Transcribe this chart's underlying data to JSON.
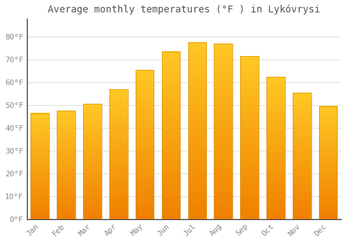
{
  "title": "Average monthly temperatures (°F ) in Lykóvrysi",
  "months": [
    "Jan",
    "Feb",
    "Mar",
    "Apr",
    "May",
    "Jun",
    "Jul",
    "Aug",
    "Sep",
    "Oct",
    "Nov",
    "Dec"
  ],
  "values": [
    46.5,
    47.5,
    50.5,
    57.0,
    65.5,
    73.5,
    77.5,
    77.0,
    71.5,
    62.5,
    55.5,
    49.5
  ],
  "bar_color_top": "#FFC825",
  "bar_color_bottom": "#F08000",
  "background_color": "#FFFFFF",
  "grid_color": "#E0E0E0",
  "ylim": [
    0,
    88
  ],
  "yticks": [
    0,
    10,
    20,
    30,
    40,
    50,
    60,
    70,
    80
  ],
  "ytick_labels": [
    "0°F",
    "10°F",
    "20°F",
    "30°F",
    "40°F",
    "50°F",
    "60°F",
    "70°F",
    "80°F"
  ],
  "title_fontsize": 10,
  "tick_fontsize": 8,
  "font_family": "monospace"
}
